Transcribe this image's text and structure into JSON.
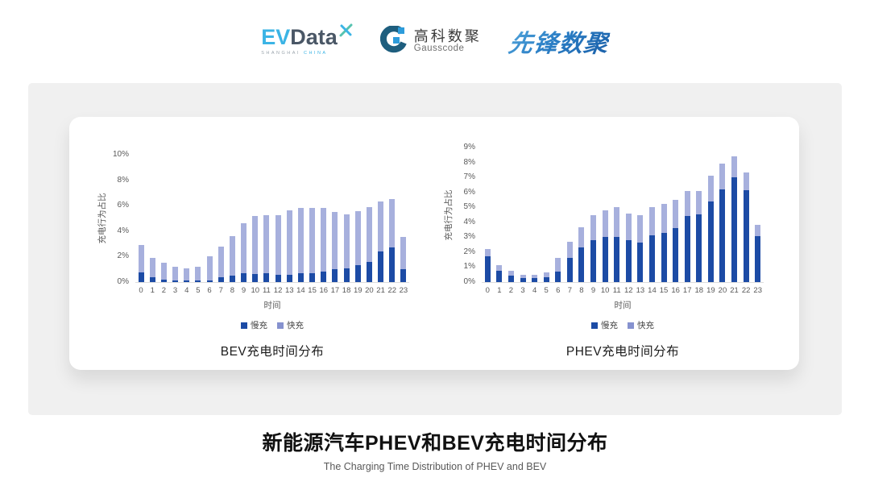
{
  "header": {
    "evdata": {
      "ev": "EV",
      "data": "Data",
      "sub_left": "SHANGHAI",
      "sub_right": "CHINA"
    },
    "gausscode": {
      "cn": "高科数聚",
      "en": "Gausscode"
    },
    "xianfeng": "先锋数聚"
  },
  "colors": {
    "slow": "#1C4BA5",
    "fast": "#A7B0DD",
    "legend_fast": "#8692CF",
    "accent_cyan": "#3BB4E5",
    "gauss_teal": "#1E5E7E",
    "gauss_blue": "#2D9CDB"
  },
  "chart_data": [
    {
      "type": "bar",
      "stacked": true,
      "title": "BEV充电时间分布",
      "xlabel": "时间",
      "ylabel": "充电行为占比",
      "ylim": [
        0,
        10
      ],
      "ytick_step": 2,
      "grid": false,
      "legend_position": "bottom",
      "categories": [
        "0",
        "1",
        "2",
        "3",
        "4",
        "5",
        "6",
        "7",
        "8",
        "9",
        "10",
        "11",
        "12",
        "13",
        "14",
        "15",
        "16",
        "17",
        "18",
        "19",
        "20",
        "21",
        "22",
        "23"
      ],
      "series": [
        {
          "name": "慢充",
          "values": [
            0.75,
            0.35,
            0.2,
            0.1,
            0.1,
            0.1,
            0.15,
            0.35,
            0.5,
            0.7,
            0.65,
            0.7,
            0.6,
            0.6,
            0.7,
            0.7,
            0.85,
            1.0,
            1.1,
            1.3,
            1.6,
            2.4,
            2.75,
            1.0
          ]
        },
        {
          "name": "快充",
          "values": [
            2.15,
            1.55,
            1.3,
            1.1,
            1.0,
            1.1,
            1.85,
            2.45,
            3.1,
            3.9,
            4.55,
            4.55,
            4.65,
            5.05,
            5.1,
            5.1,
            5.0,
            4.5,
            4.2,
            4.3,
            4.3,
            3.95,
            3.8,
            2.55
          ]
        }
      ]
    },
    {
      "type": "bar",
      "stacked": true,
      "title": "PHEV充电时间分布",
      "xlabel": "时间",
      "ylabel": "充电行为占比",
      "ylim": [
        0,
        9
      ],
      "ytick_step": 1,
      "grid": false,
      "legend_position": "bottom",
      "categories": [
        "0",
        "1",
        "2",
        "3",
        "4",
        "5",
        "6",
        "7",
        "8",
        "9",
        "10",
        "11",
        "12",
        "13",
        "14",
        "15",
        "16",
        "17",
        "18",
        "19",
        "20",
        "21",
        "22",
        "23"
      ],
      "series": [
        {
          "name": "慢充",
          "values": [
            1.75,
            0.75,
            0.45,
            0.25,
            0.25,
            0.3,
            0.7,
            1.6,
            2.3,
            2.8,
            3.0,
            3.0,
            2.8,
            2.65,
            3.1,
            3.3,
            3.6,
            4.4,
            4.55,
            5.4,
            6.2,
            7.0,
            6.15,
            3.05
          ]
        },
        {
          "name": "快充",
          "values": [
            0.45,
            0.4,
            0.3,
            0.25,
            0.25,
            0.35,
            0.9,
            1.1,
            1.35,
            1.7,
            1.8,
            2.0,
            1.8,
            1.8,
            1.9,
            1.95,
            1.9,
            1.7,
            1.55,
            1.7,
            1.7,
            1.4,
            1.2,
            0.75
          ]
        }
      ]
    }
  ],
  "footer": {
    "title": "新能源汽车PHEV和BEV充电时间分布",
    "subtitle": "The Charging Time Distribution of PHEV and BEV"
  }
}
